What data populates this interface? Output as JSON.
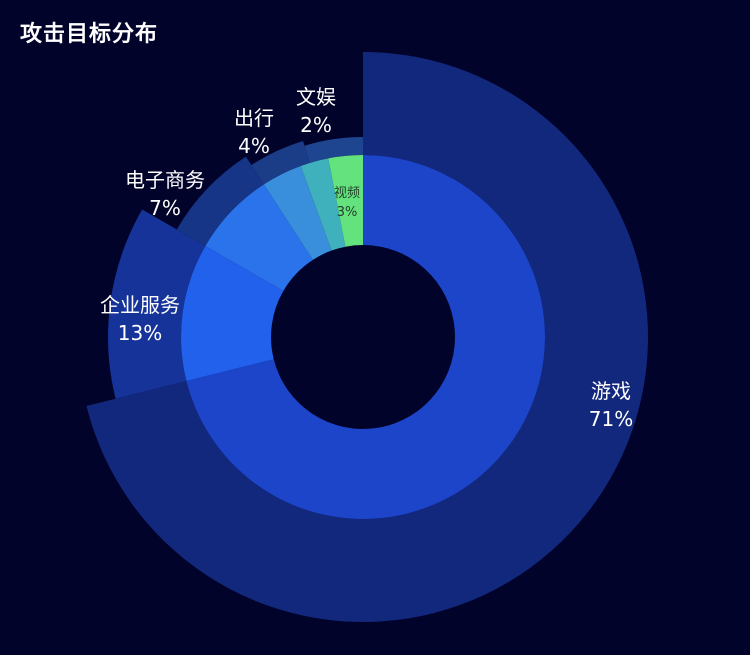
{
  "page": {
    "title": "攻击目标分布"
  },
  "chart_data": {
    "type": "pie",
    "title": "攻击目标分布",
    "style": "nightingale-rose (nested donut, outer radius varies by category)",
    "series": [
      {
        "name": "outer",
        "slices": [
          {
            "label": "游戏",
            "value": 71,
            "value_label": "71%",
            "color": "#12287c"
          },
          {
            "label": "企业服务",
            "value": 13,
            "value_label": "13%",
            "color": "#16339a"
          },
          {
            "label": "电子商务",
            "value": 7,
            "value_label": "7%",
            "color": "#163586"
          },
          {
            "label": "出行",
            "value": 4,
            "value_label": "4%",
            "color": "#1b3c86"
          },
          {
            "label": "文娱",
            "value": 2,
            "value_label": "2%",
            "color": "#1e4590"
          }
        ]
      },
      {
        "name": "inner",
        "slices": [
          {
            "label": "游戏",
            "value": 71,
            "color": "#1d45c9"
          },
          {
            "label": "企业服务",
            "value": 13,
            "color": "#2161ec"
          },
          {
            "label": "电子商务",
            "value": 7,
            "color": "#2a73ea"
          },
          {
            "label": "出行",
            "value": 4,
            "color": "#3a8fdc"
          },
          {
            "label": "文娱",
            "value": 2,
            "color": "#3fb1bd"
          },
          {
            "label": "视频",
            "value": 3,
            "value_label": "3%",
            "color": "#63e27e"
          }
        ]
      }
    ],
    "legend": "none",
    "labels": "outside for outer ring, inside for smallest inner slice"
  }
}
